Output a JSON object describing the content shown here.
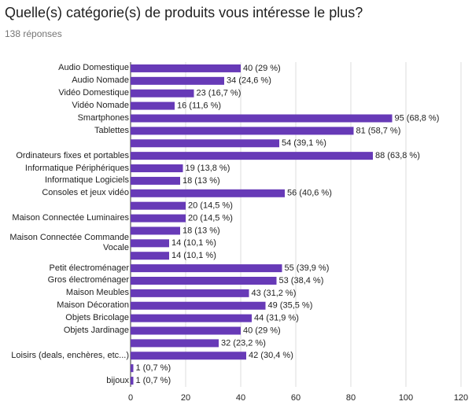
{
  "chart_data": {
    "type": "barh",
    "title": "Quelle(s) catégorie(s) de produits vous intéresse le plus?",
    "subtitle": "138 réponses",
    "color": "#673ab7",
    "grid": true,
    "xlim": [
      0,
      120
    ],
    "xticks": [
      0,
      20,
      40,
      60,
      80,
      100,
      120
    ],
    "categories": [
      "Audio Domestique",
      "Audio Nomade",
      "Vidéo Domestique",
      "Vidéo Nomade",
      "Smartphones",
      "Tablettes",
      null,
      "Ordinateurs fixes et portables",
      "Informatique Périphériques",
      "Informatique Logiciels",
      "Consoles et jeux vidéo",
      null,
      "Maison Connectée Luminaires",
      null,
      "Maison Connectée Commande Vocale",
      null,
      "Petit électroménager",
      "Gros électroménager",
      "Maison Meubles",
      "Maison Décoration",
      "Objets Bricolage",
      "Objets Jardinage",
      null,
      "Loisirs (deals, enchères, etc...)",
      null,
      "bijoux"
    ],
    "values": [
      40,
      34,
      23,
      16,
      95,
      81,
      54,
      88,
      19,
      18,
      56,
      20,
      20,
      18,
      14,
      14,
      55,
      53,
      43,
      49,
      44,
      40,
      32,
      42,
      1,
      1
    ],
    "value_labels": [
      "40 (29 %)",
      "34 (24,6 %)",
      "23 (16,7 %)",
      "16 (11,6 %)",
      "95 (68,8 %)",
      "81 (58,7 %)",
      "54 (39,1 %)",
      "88 (63,8 %)",
      "19 (13,8 %)",
      "18 (13 %)",
      "56 (40,6 %)",
      "20 (14,5 %)",
      "20 (14,5 %)",
      "18 (13 %)",
      "14 (10,1 %)",
      "14 (10,1 %)",
      "55 (39,9 %)",
      "53 (38,4 %)",
      "43 (31,2 %)",
      "49 (35,5 %)",
      "44 (31,9 %)",
      "40 (29 %)",
      "32 (23,2 %)",
      "42 (30,4 %)",
      "1 (0,7 %)",
      "1 (0,7 %)"
    ]
  }
}
